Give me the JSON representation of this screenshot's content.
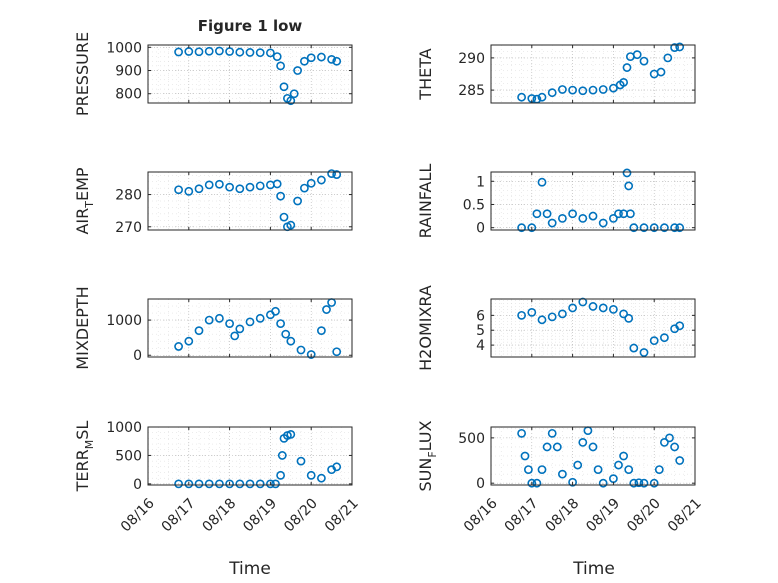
{
  "figure_title": "Figure 1 low",
  "xlabel": "Time",
  "x_tick_labels": [
    "08/16",
    "08/17",
    "08/18",
    "08/19",
    "08/20",
    "08/21"
  ],
  "colors": {
    "marker": "#0072BD",
    "axis": "#262626",
    "grid": "#b0b0b0"
  },
  "chart_data": [
    {
      "type": "scatter",
      "ylabel": "PRESSURE",
      "xlim": [
        "08/16",
        "08/21"
      ],
      "ylim": [
        760,
        1010
      ],
      "yticks": [
        800,
        900,
        1000
      ],
      "x": [
        "08/16 18:00",
        "08/17 00:00",
        "08/17 06:00",
        "08/17 12:00",
        "08/17 18:00",
        "08/18 00:00",
        "08/18 06:00",
        "08/18 12:00",
        "08/18 18:00",
        "08/19 00:00",
        "08/19 04:00",
        "08/19 06:00",
        "08/19 08:00",
        "08/19 10:00",
        "08/19 12:00",
        "08/19 14:00",
        "08/19 16:00",
        "08/19 20:00",
        "08/20 00:00",
        "08/20 06:00",
        "08/20 12:00",
        "08/20 15:00"
      ],
      "y": [
        980,
        982,
        981,
        983,
        984,
        982,
        979,
        978,
        977,
        976,
        960,
        920,
        830,
        780,
        770,
        800,
        900,
        940,
        955,
        958,
        948,
        940
      ],
      "grid": true
    },
    {
      "type": "scatter",
      "ylabel": "THETA",
      "xlim": [
        "08/16",
        "08/21"
      ],
      "ylim": [
        283,
        292
      ],
      "yticks": [
        285,
        290
      ],
      "x": [
        "08/16 18:00",
        "08/17 00:00",
        "08/17 03:00",
        "08/17 06:00",
        "08/17 12:00",
        "08/17 18:00",
        "08/18 00:00",
        "08/18 06:00",
        "08/18 12:00",
        "08/18 18:00",
        "08/19 00:00",
        "08/19 04:00",
        "08/19 06:00",
        "08/19 08:00",
        "08/19 10:00",
        "08/19 14:00",
        "08/19 18:00",
        "08/20 00:00",
        "08/20 04:00",
        "08/20 08:00",
        "08/20 12:00",
        "08/20 15:00"
      ],
      "y": [
        283.9,
        283.7,
        283.6,
        283.9,
        284.6,
        285.1,
        285.0,
        284.9,
        285.0,
        285.1,
        285.3,
        285.8,
        286.2,
        288.5,
        290.2,
        290.5,
        289.5,
        287.5,
        287.8,
        290.0,
        291.6,
        291.7
      ],
      "grid": true
    },
    {
      "type": "scatter",
      "ylabel": "AIR_TEMP",
      "xlim": [
        "08/16",
        "08/21"
      ],
      "ylim": [
        269,
        287
      ],
      "yticks": [
        270,
        280
      ],
      "x": [
        "08/16 18:00",
        "08/17 00:00",
        "08/17 06:00",
        "08/17 12:00",
        "08/17 18:00",
        "08/18 00:00",
        "08/18 06:00",
        "08/18 12:00",
        "08/18 18:00",
        "08/19 00:00",
        "08/19 04:00",
        "08/19 06:00",
        "08/19 08:00",
        "08/19 10:00",
        "08/19 12:00",
        "08/19 16:00",
        "08/19 20:00",
        "08/20 00:00",
        "08/20 06:00",
        "08/20 12:00",
        "08/20 15:00"
      ],
      "y": [
        281.5,
        281.0,
        281.8,
        283.0,
        283.2,
        282.3,
        281.8,
        282.3,
        282.7,
        283.0,
        283.3,
        279.5,
        273.0,
        270.0,
        270.5,
        278.0,
        282.0,
        283.5,
        284.5,
        286.5,
        286.2
      ],
      "grid": true
    },
    {
      "type": "scatter",
      "ylabel": "RAINFALL",
      "xlim": [
        "08/16",
        "08/21"
      ],
      "ylim": [
        -0.05,
        1.2
      ],
      "yticks": [
        0,
        0.5,
        1
      ],
      "x": [
        "08/16 18:00",
        "08/17 00:00",
        "08/17 03:00",
        "08/17 06:00",
        "08/17 09:00",
        "08/17 12:00",
        "08/17 18:00",
        "08/18 00:00",
        "08/18 06:00",
        "08/18 12:00",
        "08/18 18:00",
        "08/19 00:00",
        "08/19 03:00",
        "08/19 06:00",
        "08/19 08:00",
        "08/19 09:00",
        "08/19 10:00",
        "08/19 12:00",
        "08/19 18:00",
        "08/20 00:00",
        "08/20 06:00",
        "08/20 12:00",
        "08/20 15:00"
      ],
      "y": [
        0,
        0,
        0.3,
        0.98,
        0.3,
        0.1,
        0.2,
        0.3,
        0.2,
        0.25,
        0.1,
        0.2,
        0.3,
        0.3,
        1.18,
        0.9,
        0.3,
        0,
        0,
        0,
        0,
        0,
        0
      ],
      "grid": true
    },
    {
      "type": "scatter",
      "ylabel": "MIXDEPTH",
      "xlim": [
        "08/16",
        "08/21"
      ],
      "ylim": [
        -50,
        1600
      ],
      "yticks": [
        0,
        1000
      ],
      "x": [
        "08/16 18:00",
        "08/17 00:00",
        "08/17 06:00",
        "08/17 12:00",
        "08/17 18:00",
        "08/18 00:00",
        "08/18 03:00",
        "08/18 06:00",
        "08/18 12:00",
        "08/18 18:00",
        "08/19 00:00",
        "08/19 03:00",
        "08/19 06:00",
        "08/19 09:00",
        "08/19 12:00",
        "08/19 18:00",
        "08/20 00:00",
        "08/20 06:00",
        "08/20 09:00",
        "08/20 12:00",
        "08/20 15:00"
      ],
      "y": [
        250,
        400,
        700,
        1000,
        1050,
        900,
        550,
        750,
        950,
        1050,
        1150,
        1250,
        900,
        600,
        400,
        150,
        20,
        700,
        1300,
        1500,
        100
      ],
      "grid": true
    },
    {
      "type": "scatter",
      "ylabel": "H2OMIXRA",
      "xlim": [
        "08/16",
        "08/21"
      ],
      "ylim": [
        3.2,
        7.1
      ],
      "yticks": [
        4,
        5,
        6
      ],
      "x": [
        "08/16 18:00",
        "08/17 00:00",
        "08/17 06:00",
        "08/17 12:00",
        "08/17 18:00",
        "08/18 00:00",
        "08/18 06:00",
        "08/18 12:00",
        "08/18 18:00",
        "08/19 00:00",
        "08/19 06:00",
        "08/19 09:00",
        "08/19 12:00",
        "08/19 18:00",
        "08/20 00:00",
        "08/20 06:00",
        "08/20 12:00",
        "08/20 15:00"
      ],
      "y": [
        6.0,
        6.2,
        5.7,
        5.9,
        6.1,
        6.5,
        6.9,
        6.6,
        6.5,
        6.4,
        6.1,
        5.8,
        3.8,
        3.5,
        4.3,
        4.5,
        5.1,
        5.3
      ],
      "grid": true
    },
    {
      "type": "scatter",
      "ylabel": "TERR_MSL",
      "xlim": [
        "08/16",
        "08/21"
      ],
      "ylim": [
        -20,
        1000
      ],
      "yticks": [
        0,
        500,
        1000
      ],
      "x": [
        "08/16 18:00",
        "08/17 00:00",
        "08/17 06:00",
        "08/17 12:00",
        "08/17 18:00",
        "08/18 00:00",
        "08/18 06:00",
        "08/18 12:00",
        "08/18 18:00",
        "08/19 00:00",
        "08/19 03:00",
        "08/19 06:00",
        "08/19 07:00",
        "08/19 08:00",
        "08/19 10:00",
        "08/19 12:00",
        "08/19 18:00",
        "08/20 00:00",
        "08/20 06:00",
        "08/20 12:00",
        "08/20 15:00"
      ],
      "y": [
        0,
        0,
        0,
        0,
        0,
        0,
        0,
        0,
        0,
        0,
        0,
        150,
        500,
        800,
        850,
        870,
        400,
        150,
        100,
        250,
        300
      ],
      "grid": true
    },
    {
      "type": "scatter",
      "ylabel": "SUN_FLUX",
      "xlim": [
        "08/16",
        "08/21"
      ],
      "ylim": [
        -20,
        620
      ],
      "yticks": [
        0,
        500
      ],
      "x": [
        "08/16 18:00",
        "08/16 20:00",
        "08/16 22:00",
        "08/17 00:00",
        "08/17 03:00",
        "08/17 06:00",
        "08/17 09:00",
        "08/17 12:00",
        "08/17 15:00",
        "08/17 18:00",
        "08/18 00:00",
        "08/18 03:00",
        "08/18 06:00",
        "08/18 09:00",
        "08/18 12:00",
        "08/18 15:00",
        "08/18 18:00",
        "08/19 00:00",
        "08/19 03:00",
        "08/19 06:00",
        "08/19 09:00",
        "08/19 12:00",
        "08/19 15:00",
        "08/19 18:00",
        "08/20 00:00",
        "08/20 03:00",
        "08/20 06:00",
        "08/20 09:00",
        "08/20 12:00",
        "08/20 15:00"
      ],
      "y": [
        550,
        300,
        150,
        0,
        0,
        150,
        400,
        550,
        400,
        100,
        10,
        200,
        450,
        580,
        400,
        150,
        0,
        50,
        200,
        300,
        150,
        0,
        5,
        0,
        0,
        150,
        450,
        500,
        400,
        250
      ],
      "grid": true
    }
  ]
}
